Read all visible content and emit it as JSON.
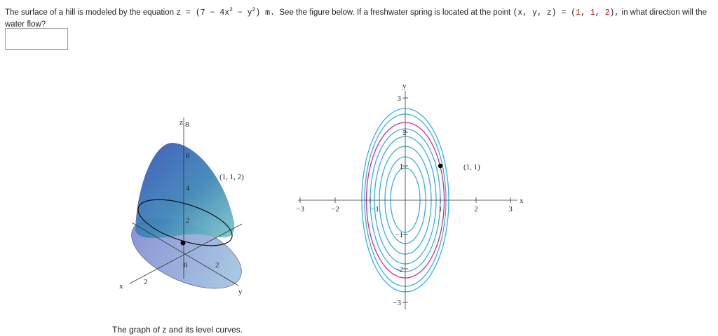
{
  "question": {
    "text_before": "The surface of a hill is modeled by the equation",
    "equation": {
      "a": "z = (7 − 4x",
      "sup1": "2",
      "b": " − y",
      "sup2": "2",
      "c": ") m."
    },
    "text_mid": "See the figure below. If a freshwater spring is located at the point",
    "point": {
      "lhs": "(x, y, z) = (",
      "x": "1",
      "sep1": ", ",
      "y": "1",
      "sep2": ", ",
      "z": "2",
      "end": "),"
    },
    "text_end": "in what direction will the water flow?"
  },
  "figure_3d": {
    "z_label": "z",
    "z_ticks": [
      "8",
      "6",
      "4",
      "2",
      "0"
    ],
    "x_label": "x",
    "x_tick": "2",
    "y_label": "y",
    "y_tick": "2",
    "point_label": "(1, 1, 2)"
  },
  "figure_level": {
    "x_label": "x",
    "y_label": "y",
    "x_ticks": [
      "−3",
      "−2",
      "−1",
      "1",
      "2",
      "3"
    ],
    "y_ticks": [
      "3",
      "2",
      "1",
      "−1",
      "−2",
      "−3"
    ],
    "point_label": "(1, 1)"
  },
  "caption": "The graph of z and its level curves."
}
